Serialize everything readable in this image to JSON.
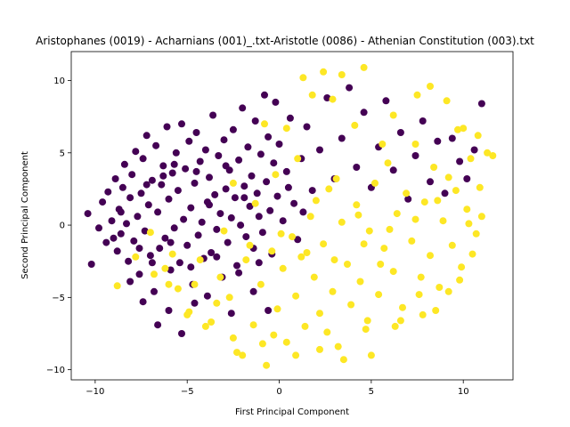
{
  "chart_data": {
    "type": "scatter",
    "title": "Aristophanes (0019) - Acharnians (001)_.txt-Aristotle (0086) - Athenian Constitution (003).txt",
    "xlabel": "First Principal Component",
    "ylabel": "Second Principal Component",
    "xlim": [
      -11.3,
      12.7
    ],
    "ylim": [
      -10.7,
      12.0
    ],
    "xticks": [
      -10,
      -5,
      0,
      5,
      10
    ],
    "yticks": [
      -10,
      -5,
      0,
      5,
      10
    ],
    "xtick_labels": [
      "−10",
      "−5",
      "0",
      "5",
      "10"
    ],
    "ytick_labels": [
      "−10",
      "−5",
      "0",
      "5",
      "10"
    ],
    "grid": false,
    "series": [
      {
        "color": "#440154",
        "points": [
          [
            -10.4,
            0.8
          ],
          [
            -10.2,
            -2.7
          ],
          [
            -9.8,
            -0.2
          ],
          [
            -9.6,
            1.6
          ],
          [
            -9.4,
            -1.2
          ],
          [
            -9.3,
            2.3
          ],
          [
            -9.1,
            0.3
          ],
          [
            -8.9,
            3.2
          ],
          [
            -8.8,
            -1.8
          ],
          [
            -8.7,
            1.1
          ],
          [
            -8.6,
            -0.6
          ],
          [
            -8.5,
            2.6
          ],
          [
            -8.4,
            4.2
          ],
          [
            -8.3,
            0.1
          ],
          [
            -8.2,
            -2.5
          ],
          [
            -8.1,
            1.9
          ],
          [
            -8.0,
            3.5
          ],
          [
            -7.9,
            -1.1
          ],
          [
            -7.8,
            5.1
          ],
          [
            -7.7,
            0.6
          ],
          [
            -7.6,
            -3.4
          ],
          [
            -7.5,
            2.2
          ],
          [
            -7.4,
            4.6
          ],
          [
            -7.3,
            -0.4
          ],
          [
            -7.2,
            6.2
          ],
          [
            -7.1,
            1.4
          ],
          [
            -7.0,
            -2.1
          ],
          [
            -6.9,
            3.1
          ],
          [
            -6.8,
            -4.6
          ],
          [
            -6.7,
            5.5
          ],
          [
            -6.6,
            0.9
          ],
          [
            -6.5,
            -1.6
          ],
          [
            -6.4,
            2.8
          ],
          [
            -6.3,
            4.1
          ],
          [
            -6.2,
            -0.9
          ],
          [
            -6.1,
            6.8
          ],
          [
            -6.0,
            1.8
          ],
          [
            -5.9,
            -3.1
          ],
          [
            -5.8,
            3.6
          ],
          [
            -5.7,
            -0.2
          ],
          [
            -5.6,
            5.0
          ],
          [
            -5.5,
            2.4
          ],
          [
            -5.4,
            -2.6
          ],
          [
            -5.3,
            7.0
          ],
          [
            -5.2,
            0.4
          ],
          [
            -5.1,
            3.9
          ],
          [
            -5.0,
            -1.4
          ],
          [
            -4.9,
            5.8
          ],
          [
            -4.8,
            1.2
          ],
          [
            -4.7,
            -4.1
          ],
          [
            -4.6,
            2.9
          ],
          [
            -4.5,
            6.4
          ],
          [
            -4.4,
            -0.7
          ],
          [
            -4.3,
            4.4
          ],
          [
            -4.2,
            0.2
          ],
          [
            -4.1,
            -2.3
          ],
          [
            -4.0,
            5.2
          ],
          [
            -3.9,
            1.6
          ],
          [
            -3.8,
            3.3
          ],
          [
            -3.7,
            -1.9
          ],
          [
            -3.6,
            7.6
          ],
          [
            -3.5,
            2.1
          ],
          [
            -3.4,
            -0.3
          ],
          [
            -3.3,
            4.8
          ],
          [
            -3.2,
            0.8
          ],
          [
            -3.1,
            -3.6
          ],
          [
            -3.0,
            5.9
          ],
          [
            -2.9,
            2.5
          ],
          [
            -2.8,
            -1.2
          ],
          [
            -2.7,
            3.8
          ],
          [
            -2.6,
            0.5
          ],
          [
            -2.5,
            6.6
          ],
          [
            -2.4,
            1.9
          ],
          [
            -2.3,
            -2.8
          ],
          [
            -2.2,
            4.5
          ],
          [
            -2.1,
            0.0
          ],
          [
            -2.0,
            8.1
          ],
          [
            -1.9,
            2.7
          ],
          [
            -1.8,
            -0.8
          ],
          [
            -1.7,
            5.4
          ],
          [
            -1.6,
            1.3
          ],
          [
            -1.5,
            3.4
          ],
          [
            -1.4,
            -1.6
          ],
          [
            -1.3,
            7.2
          ],
          [
            -1.2,
            2.2
          ],
          [
            -1.1,
            0.6
          ],
          [
            -1.0,
            4.9
          ],
          [
            -0.9,
            -0.5
          ],
          [
            -0.8,
            9.0
          ],
          [
            -0.7,
            3.0
          ],
          [
            -0.6,
            6.1
          ],
          [
            -0.5,
            1.0
          ],
          [
            -0.4,
            -2.0
          ],
          [
            -0.3,
            4.3
          ],
          [
            -0.2,
            8.5
          ],
          [
            -0.1,
            2.0
          ],
          [
            0.0,
            5.6
          ],
          [
            0.2,
            0.3
          ],
          [
            0.4,
            3.7
          ],
          [
            0.6,
            7.4
          ],
          [
            0.8,
            1.5
          ],
          [
            1.0,
            -1.0
          ],
          [
            1.2,
            4.6
          ],
          [
            1.5,
            6.8
          ],
          [
            1.8,
            2.4
          ],
          [
            2.2,
            5.2
          ],
          [
            2.6,
            8.8
          ],
          [
            3.0,
            3.2
          ],
          [
            3.4,
            6.0
          ],
          [
            3.8,
            9.5
          ],
          [
            4.2,
            4.0
          ],
          [
            4.6,
            7.8
          ],
          [
            5.0,
            2.6
          ],
          [
            5.4,
            5.4
          ],
          [
            5.8,
            8.6
          ],
          [
            6.2,
            3.8
          ],
          [
            6.6,
            6.4
          ],
          [
            7.0,
            1.8
          ],
          [
            7.4,
            4.8
          ],
          [
            7.8,
            7.2
          ],
          [
            8.2,
            3.0
          ],
          [
            8.6,
            5.8
          ],
          [
            9.0,
            2.2
          ],
          [
            9.4,
            6.0
          ],
          [
            9.8,
            4.4
          ],
          [
            10.2,
            3.2
          ],
          [
            10.6,
            5.2
          ],
          [
            11.0,
            8.4
          ],
          [
            -6.6,
            -6.9
          ],
          [
            -5.3,
            -7.5
          ],
          [
            -4.6,
            -5.4
          ],
          [
            -7.4,
            -5.3
          ],
          [
            -8.1,
            -3.9
          ],
          [
            -6.0,
            -5.9
          ],
          [
            -3.9,
            -4.9
          ],
          [
            -2.6,
            -6.1
          ],
          [
            -1.4,
            -4.6
          ],
          [
            -0.6,
            -5.9
          ],
          [
            -5.7,
            4.2
          ],
          [
            -6.3,
            3.4
          ],
          [
            -7.2,
            2.8
          ],
          [
            -4.5,
            3.7
          ],
          [
            -3.8,
            1.4
          ],
          [
            -2.9,
            4.1
          ],
          [
            -1.9,
            1.9
          ],
          [
            -8.6,
            0.9
          ],
          [
            -9.0,
            -0.9
          ],
          [
            -7.6,
            -1.6
          ],
          [
            -6.9,
            -2.6
          ],
          [
            -5.9,
            -1.2
          ],
          [
            -4.8,
            -2.9
          ],
          [
            -3.4,
            -2.2
          ],
          [
            -2.2,
            -3.3
          ],
          [
            -1.1,
            -2.6
          ],
          [
            0.5,
            2.6
          ],
          [
            1.3,
            0.9
          ]
        ]
      },
      {
        "color": "#fde725",
        "points": [
          [
            -8.8,
            -4.2
          ],
          [
            -7.0,
            -0.5
          ],
          [
            -6.2,
            -3.0
          ],
          [
            -5.5,
            -4.4
          ],
          [
            -4.9,
            -6.0
          ],
          [
            -4.3,
            -2.4
          ],
          [
            -3.7,
            -6.7
          ],
          [
            -3.2,
            -3.6
          ],
          [
            -2.7,
            -5.0
          ],
          [
            -2.3,
            -8.8
          ],
          [
            -1.8,
            -2.4
          ],
          [
            -1.4,
            -6.9
          ],
          [
            -1.0,
            -4.1
          ],
          [
            -0.7,
            -9.7
          ],
          [
            -0.4,
            -1.8
          ],
          [
            -0.1,
            -5.8
          ],
          [
            0.2,
            -3.0
          ],
          [
            0.4,
            -8.1
          ],
          [
            0.7,
            -0.8
          ],
          [
            0.9,
            -4.9
          ],
          [
            1.2,
            -2.2
          ],
          [
            1.4,
            -7.0
          ],
          [
            1.7,
            0.6
          ],
          [
            1.9,
            -3.6
          ],
          [
            2.2,
            -6.1
          ],
          [
            2.4,
            -1.3
          ],
          [
            2.7,
            2.5
          ],
          [
            2.9,
            -4.6
          ],
          [
            3.2,
            -8.4
          ],
          [
            3.4,
            0.2
          ],
          [
            3.7,
            -2.7
          ],
          [
            3.9,
            -5.5
          ],
          [
            4.2,
            1.4
          ],
          [
            4.4,
            -3.9
          ],
          [
            4.7,
            -7.2
          ],
          [
            4.9,
            -0.4
          ],
          [
            5.2,
            2.9
          ],
          [
            5.4,
            -4.8
          ],
          [
            5.7,
            -1.6
          ],
          [
            5.9,
            4.3
          ],
          [
            6.2,
            -3.2
          ],
          [
            6.4,
            0.8
          ],
          [
            6.7,
            -5.7
          ],
          [
            6.9,
            2.2
          ],
          [
            7.2,
            -1.1
          ],
          [
            7.4,
            5.6
          ],
          [
            7.7,
            -3.6
          ],
          [
            7.9,
            1.6
          ],
          [
            8.2,
            -2.1
          ],
          [
            8.4,
            4.0
          ],
          [
            8.7,
            -4.3
          ],
          [
            8.9,
            0.3
          ],
          [
            9.2,
            3.3
          ],
          [
            9.4,
            -1.4
          ],
          [
            9.7,
            6.6
          ],
          [
            9.9,
            -2.9
          ],
          [
            10.2,
            1.1
          ],
          [
            10.4,
            4.6
          ],
          [
            10.7,
            -0.6
          ],
          [
            10.9,
            2.6
          ],
          [
            11.3,
            5.0
          ],
          [
            11.6,
            4.8
          ],
          [
            1.3,
            10.2
          ],
          [
            2.4,
            10.6
          ],
          [
            3.4,
            10.4
          ],
          [
            4.6,
            10.9
          ],
          [
            6.2,
            7.6
          ],
          [
            7.5,
            9.0
          ],
          [
            8.2,
            9.6
          ],
          [
            9.1,
            8.6
          ],
          [
            10.0,
            6.7
          ],
          [
            10.8,
            6.2
          ],
          [
            -0.8,
            7.0
          ],
          [
            0.4,
            6.7
          ],
          [
            1.8,
            9.0
          ],
          [
            2.9,
            8.7
          ],
          [
            4.1,
            6.9
          ],
          [
            5.6,
            5.6
          ],
          [
            -2.5,
            2.9
          ],
          [
            -1.3,
            1.5
          ],
          [
            -0.2,
            3.5
          ],
          [
            1.0,
            4.6
          ],
          [
            2.0,
            1.7
          ],
          [
            3.1,
            3.2
          ],
          [
            4.3,
            0.7
          ],
          [
            5.5,
            -2.7
          ],
          [
            6.6,
            -6.6
          ],
          [
            7.6,
            -4.8
          ],
          [
            8.5,
            -5.9
          ],
          [
            9.2,
            -4.6
          ],
          [
            3.5,
            -9.3
          ],
          [
            2.2,
            -8.6
          ],
          [
            0.9,
            -9.0
          ],
          [
            -0.9,
            -8.2
          ],
          [
            -2.5,
            -7.8
          ],
          [
            -4.0,
            -7.0
          ],
          [
            -5.0,
            -6.2
          ],
          [
            -6.0,
            -4.1
          ],
          [
            -3.0,
            -0.4
          ],
          [
            -1.6,
            -1.4
          ],
          [
            0.1,
            -0.6
          ],
          [
            1.5,
            -1.9
          ],
          [
            3.0,
            -2.4
          ],
          [
            4.6,
            -1.3
          ],
          [
            6.0,
            -0.3
          ],
          [
            7.4,
            0.4
          ],
          [
            8.6,
            1.7
          ],
          [
            9.6,
            2.4
          ],
          [
            10.3,
            0.1
          ],
          [
            11.0,
            0.6
          ],
          [
            7.8,
            -6.2
          ],
          [
            6.3,
            -7.0
          ],
          [
            4.8,
            -6.6
          ],
          [
            2.6,
            -7.4
          ],
          [
            -2.0,
            -9.0
          ],
          [
            -0.3,
            -7.6
          ],
          [
            -3.4,
            -5.4
          ],
          [
            -4.6,
            -4.1
          ],
          [
            5.0,
            -9.0
          ],
          [
            -6.8,
            -3.4
          ],
          [
            -7.8,
            -2.2
          ],
          [
            -5.8,
            -2.0
          ],
          [
            10.5,
            -2.0
          ],
          [
            9.8,
            -3.8
          ]
        ]
      }
    ]
  }
}
